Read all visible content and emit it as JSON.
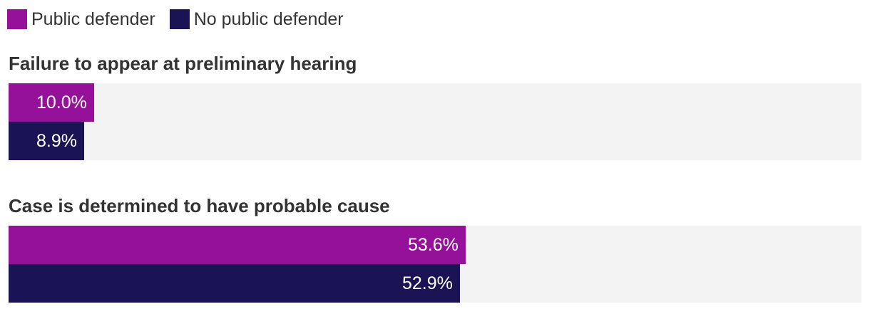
{
  "chart_data": {
    "type": "bar",
    "orientation": "horizontal",
    "categories": [
      "Failure to appear at preliminary hearing",
      "Case is determined to have probable cause"
    ],
    "series": [
      {
        "name": "Public defender",
        "color": "#951199",
        "values": [
          10.0,
          53.6
        ],
        "labels": [
          "10.0%",
          "53.6%"
        ]
      },
      {
        "name": "No public defender",
        "color": "#1b1454",
        "values": [
          8.9,
          52.9
        ],
        "labels": [
          "8.9%",
          "52.9%"
        ]
      }
    ],
    "xlim": [
      0,
      100
    ],
    "value_suffix": "%",
    "track_color": "#f3f3f3",
    "legend_position": "top-left",
    "grid": false
  }
}
